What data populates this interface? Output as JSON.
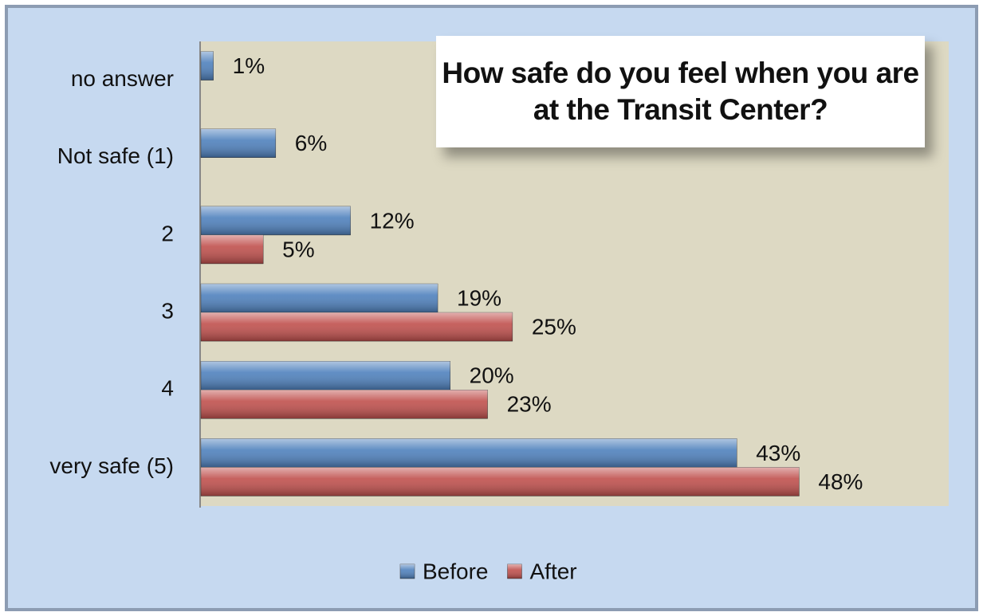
{
  "chart_data": {
    "type": "hbar",
    "title": "How safe do you feel when you are at the Transit Center?",
    "categories": [
      "no answer",
      "Not safe (1)",
      "2",
      "3",
      "4",
      "very safe (5)"
    ],
    "series": [
      {
        "name": "Before",
        "color": "#4f81bd",
        "values": [
          1,
          6,
          12,
          19,
          20,
          43
        ],
        "value_labels": [
          "1%",
          "6%",
          "12%",
          "19%",
          "20%",
          "43%"
        ]
      },
      {
        "name": "After",
        "color": "#c0504d",
        "values": [
          null,
          null,
          5,
          25,
          23,
          48
        ],
        "value_labels": [
          null,
          null,
          "5%",
          "25%",
          "23%",
          "48%"
        ]
      }
    ],
    "xlim": [
      0,
      60
    ],
    "legend": "bottom"
  }
}
